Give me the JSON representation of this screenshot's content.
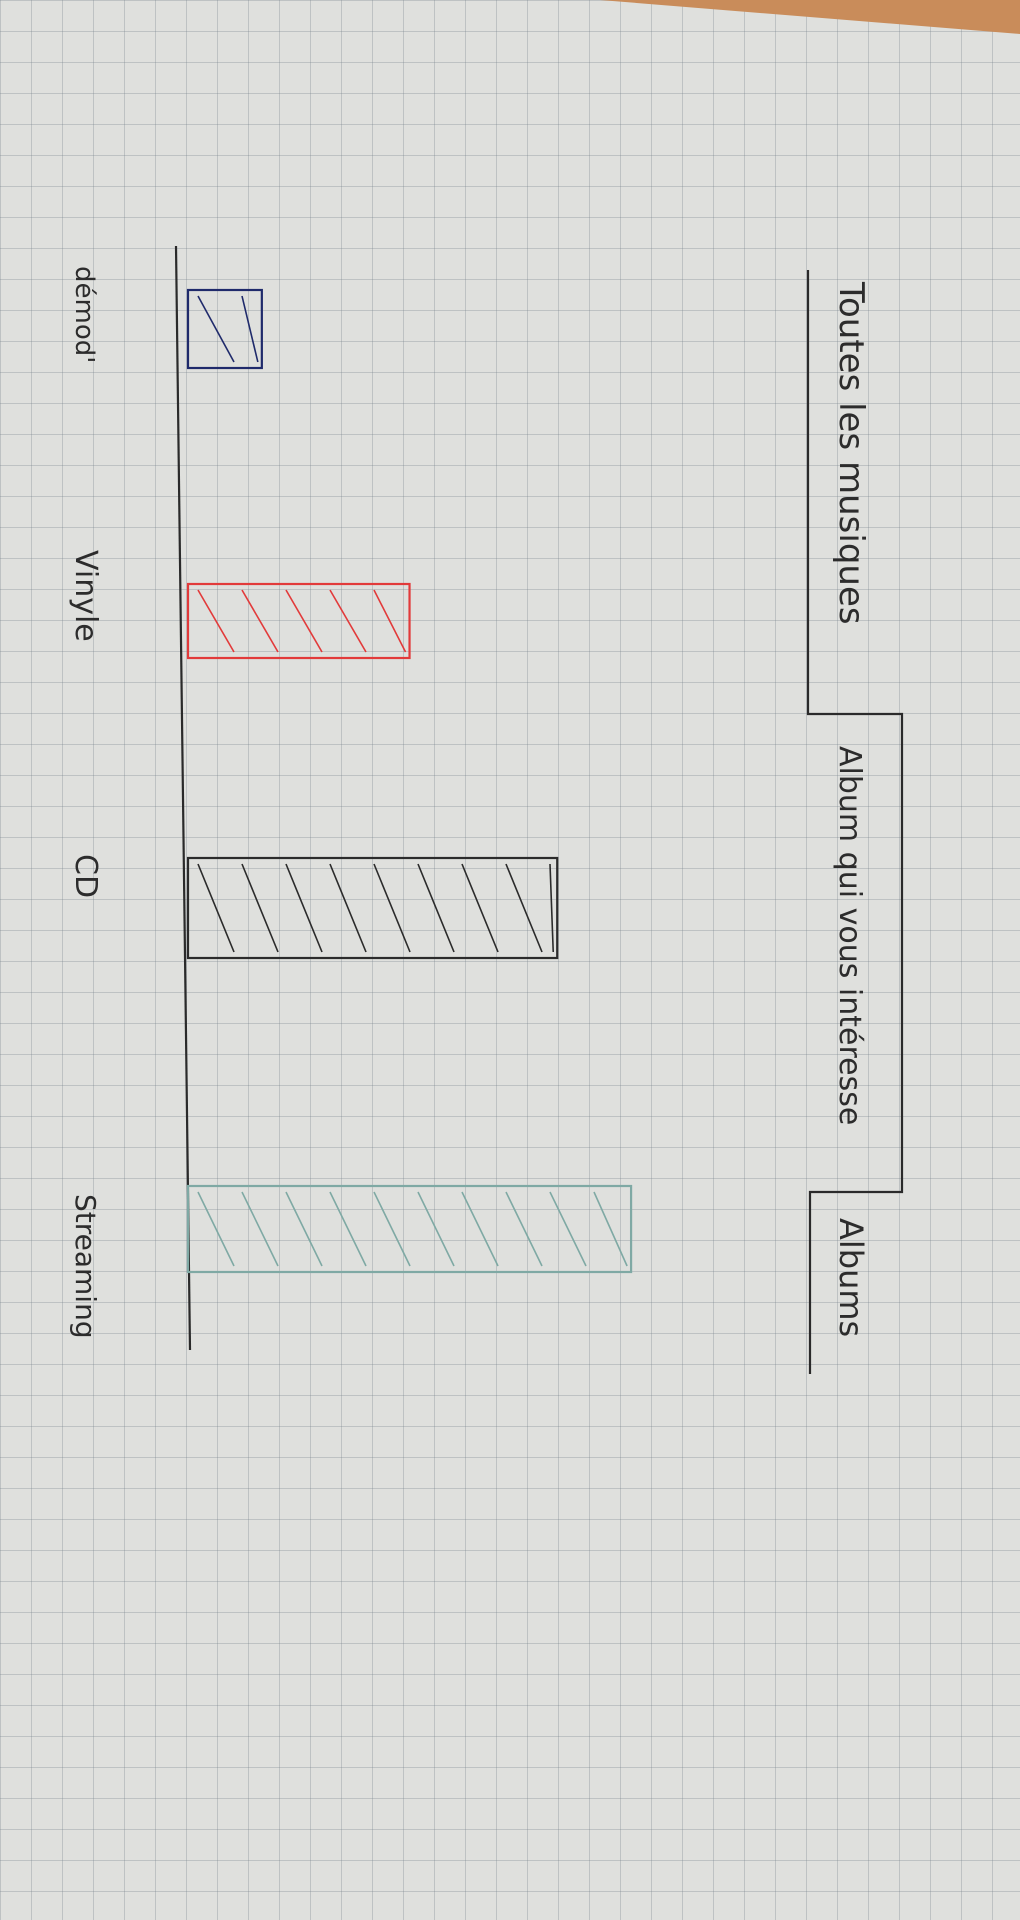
{
  "chart_data": {
    "type": "bar",
    "orientation": "horizontal",
    "categories": [
      "démod'",
      "Vinyle",
      "CD",
      "Streaming"
    ],
    "series": [
      {
        "values": [
          2,
          6,
          10,
          12
        ],
        "colors": [
          "#1f2a6b",
          "#e23a3a",
          "#2b2b2b",
          "#7fa9a4"
        ]
      }
    ],
    "legend": {
      "items": [
        "Toutes les musiques",
        "Album qui vous intéresse",
        "Albums"
      ]
    },
    "xlim": [
      0,
      13
    ],
    "grid": true
  }
}
